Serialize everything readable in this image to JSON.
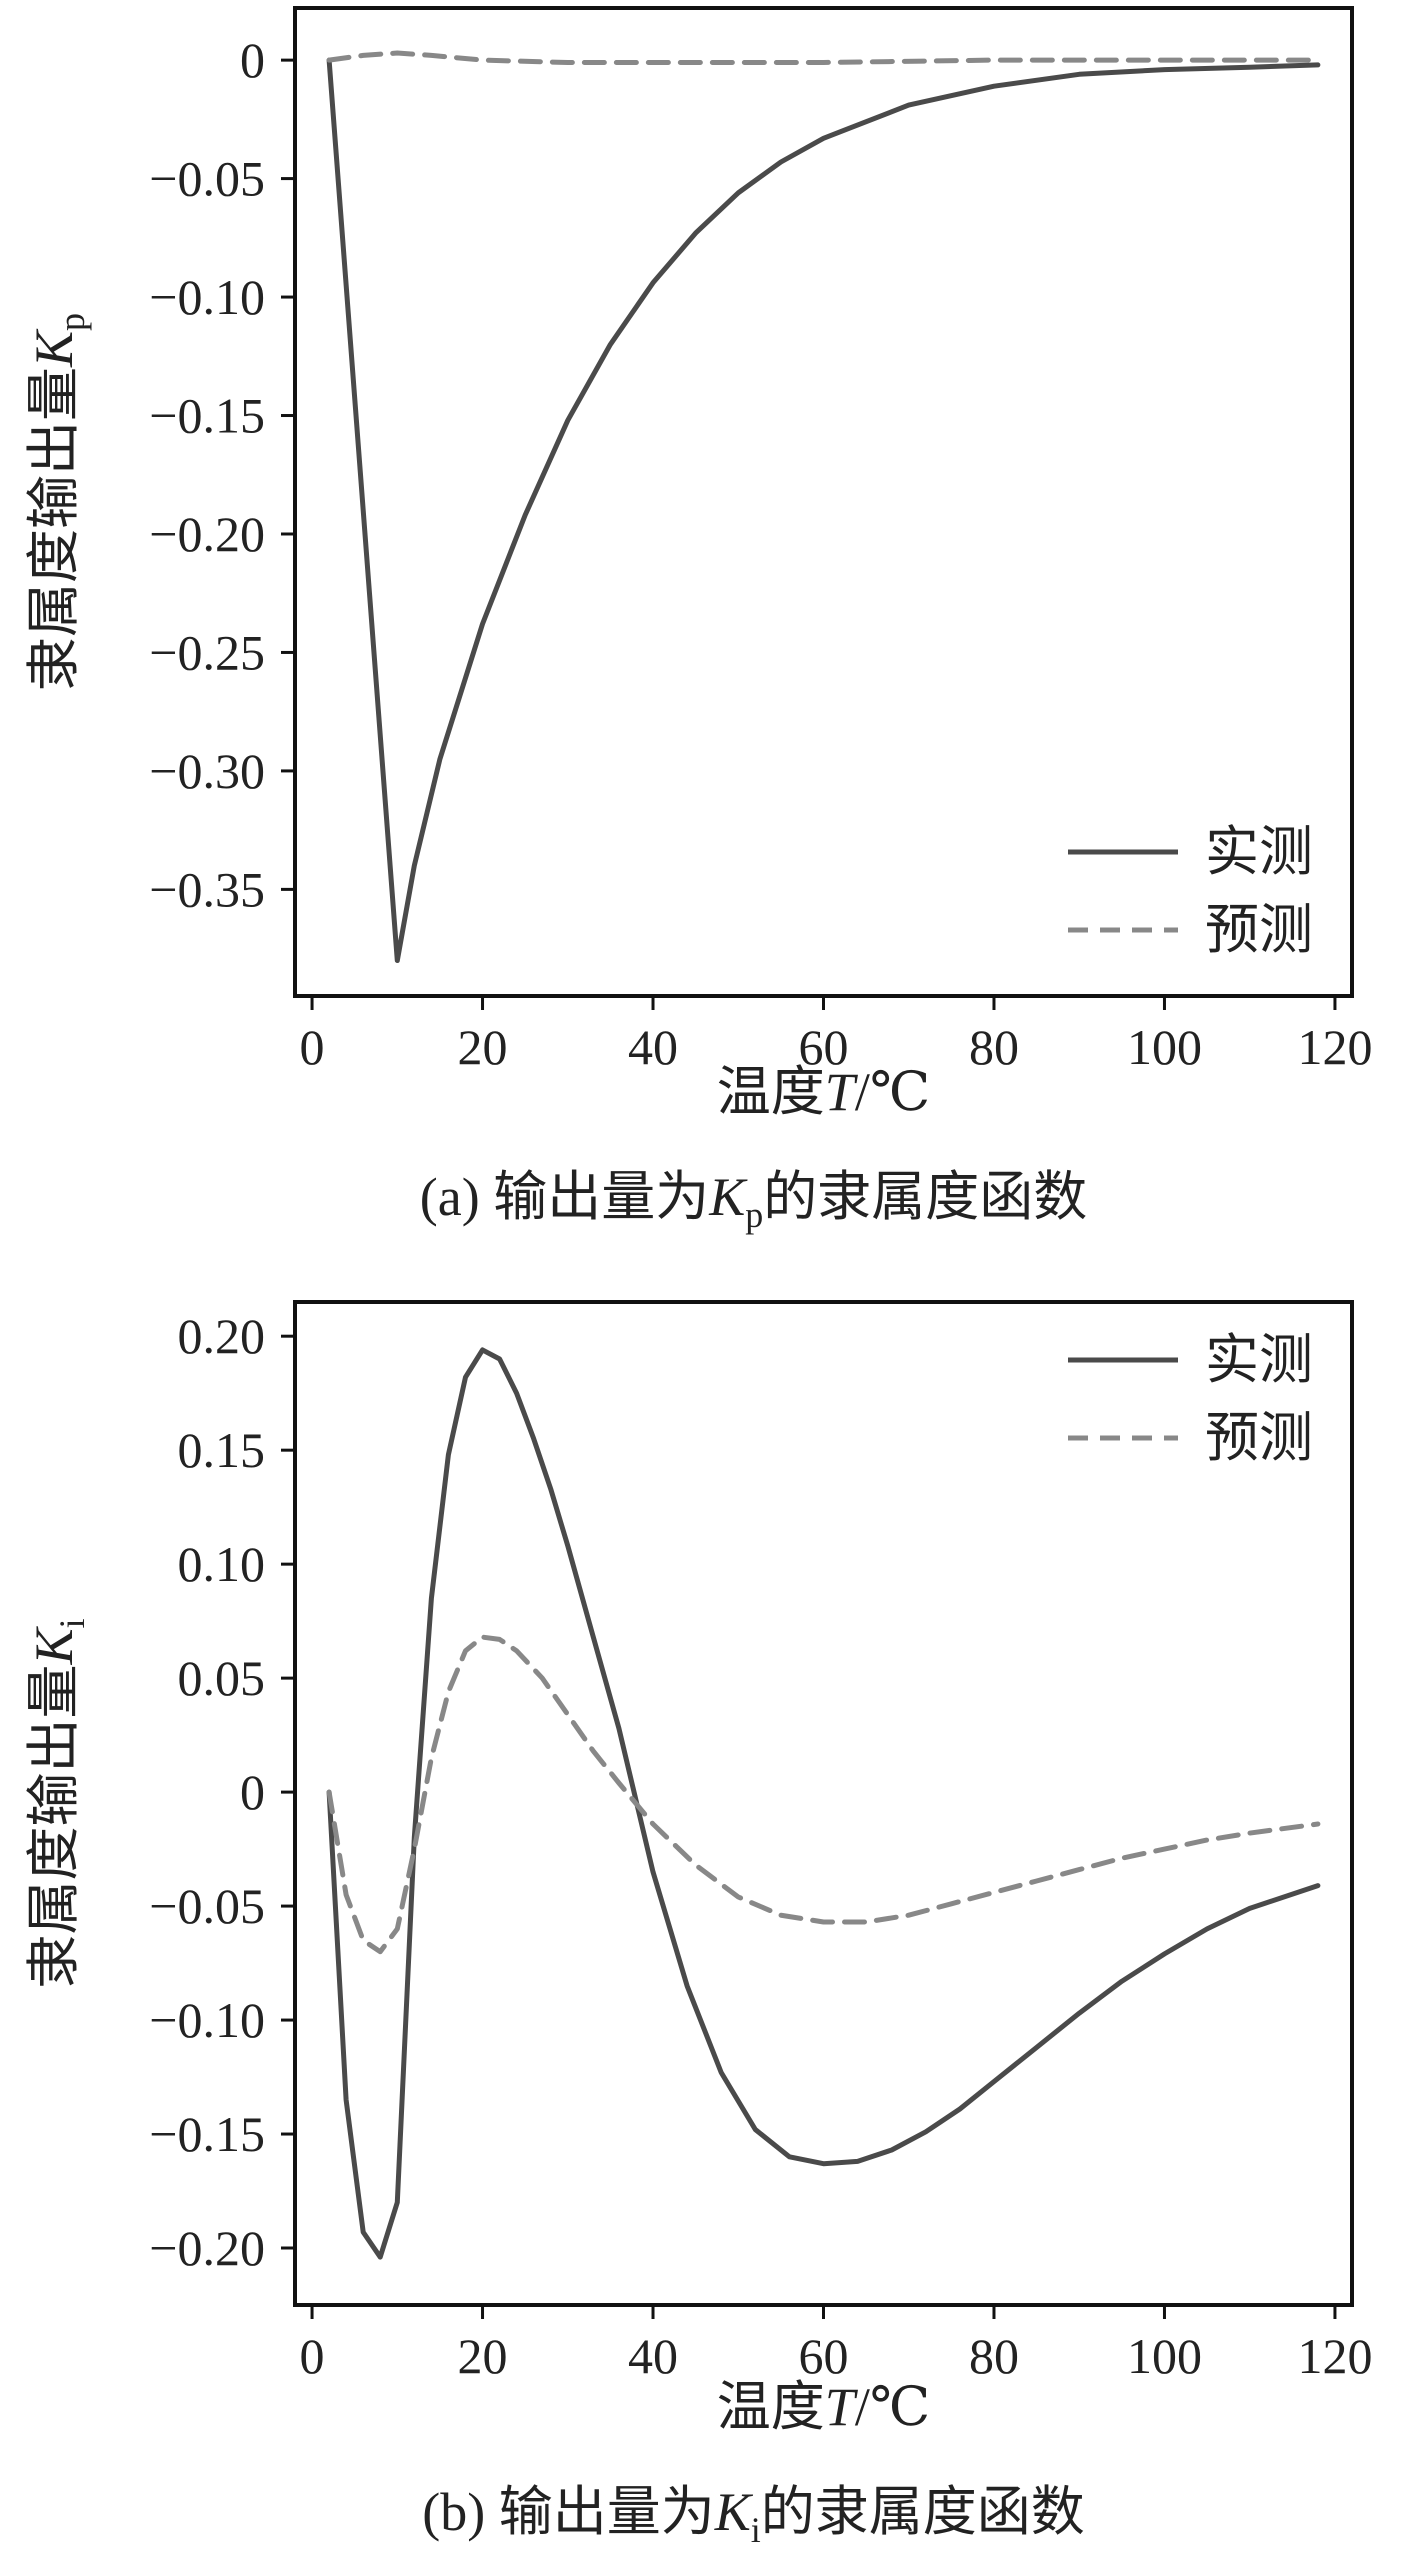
{
  "chart_data": [
    {
      "type": "line",
      "caption": "(a) 输出量为Kp的隶属度函数",
      "caption_parts": {
        "prefix": "(a) 输出量为",
        "symbol": "K",
        "subscript": "p",
        "suffix": "的隶属度函数"
      },
      "xlabel": "温度T/℃",
      "xlabel_parts": {
        "prefix": "温度",
        "symbol": "T",
        "suffix": "/℃"
      },
      "ylabel": "隶属度输出量Kp",
      "ylabel_parts": {
        "prefix": "隶属度输出量",
        "symbol": "K",
        "subscript": "p"
      },
      "xlim": [
        -2,
        122
      ],
      "ylim": [
        -0.395,
        0.022
      ],
      "xticks": [
        0,
        20,
        40,
        60,
        80,
        100,
        120
      ],
      "xtick_labels": [
        "0",
        "20",
        "40",
        "60",
        "80",
        "100",
        "120"
      ],
      "yticks": [
        0,
        -0.05,
        -0.1,
        -0.15,
        -0.2,
        -0.25,
        -0.3,
        -0.35
      ],
      "ytick_labels": [
        "0",
        "−0.05",
        "−0.10",
        "−0.15",
        "−0.20",
        "−0.25",
        "−0.30",
        "−0.35"
      ],
      "grid": false,
      "legend_position": "bottom-right",
      "series": [
        {
          "name": "实测",
          "style": "solid",
          "color": "#4a4a4a",
          "x": [
            2,
            10,
            12,
            15,
            20,
            25,
            30,
            35,
            40,
            45,
            50,
            55,
            60,
            70,
            80,
            90,
            100,
            110,
            118
          ],
          "y": [
            0,
            -0.38,
            -0.34,
            -0.295,
            -0.238,
            -0.192,
            -0.152,
            -0.12,
            -0.094,
            -0.073,
            -0.056,
            -0.043,
            -0.033,
            -0.019,
            -0.011,
            -0.006,
            -0.004,
            -0.003,
            -0.002
          ]
        },
        {
          "name": "预测",
          "style": "dashed",
          "color": "#888888",
          "x": [
            2,
            6,
            10,
            14,
            20,
            30,
            40,
            60,
            80,
            100,
            118
          ],
          "y": [
            0,
            0.002,
            0.003,
            0.002,
            0.0,
            -0.001,
            -0.001,
            -0.001,
            0,
            0,
            0
          ]
        }
      ]
    },
    {
      "type": "line",
      "caption": "(b) 输出量为Ki的隶属度函数",
      "caption_parts": {
        "prefix": "(b) 输出量为",
        "symbol": "K",
        "subscript": "i",
        "suffix": "的隶属度函数"
      },
      "xlabel": "温度T/℃",
      "xlabel_parts": {
        "prefix": "温度",
        "symbol": "T",
        "suffix": "/℃"
      },
      "ylabel": "隶属度输出量Ki",
      "ylabel_parts": {
        "prefix": "隶属度输出量",
        "symbol": "K",
        "subscript": "i"
      },
      "xlim": [
        -2,
        122
      ],
      "ylim": [
        -0.225,
        0.215
      ],
      "xticks": [
        0,
        20,
        40,
        60,
        80,
        100,
        120
      ],
      "xtick_labels": [
        "0",
        "20",
        "40",
        "60",
        "80",
        "100",
        "120"
      ],
      "yticks": [
        0.2,
        0.15,
        0.1,
        0.05,
        0,
        -0.05,
        -0.1,
        -0.15,
        -0.2
      ],
      "ytick_labels": [
        "0.20",
        "0.15",
        "0.10",
        "0.05",
        "0",
        "−0.05",
        "−0.10",
        "−0.15",
        "−0.20"
      ],
      "grid": false,
      "legend_position": "top-right",
      "series": [
        {
          "name": "实测",
          "style": "solid",
          "color": "#4a4a4a",
          "x": [
            2,
            4,
            6,
            8,
            10,
            12,
            14,
            16,
            18,
            20,
            22,
            24,
            26,
            28,
            30,
            33,
            36,
            40,
            44,
            48,
            52,
            56,
            60,
            64,
            68,
            72,
            76,
            80,
            85,
            90,
            95,
            100,
            105,
            110,
            118
          ],
          "y": [
            0,
            -0.135,
            -0.193,
            -0.204,
            -0.18,
            -0.02,
            0.085,
            0.148,
            0.182,
            0.194,
            0.19,
            0.175,
            0.155,
            0.133,
            0.108,
            0.068,
            0.028,
            -0.035,
            -0.085,
            -0.123,
            -0.148,
            -0.16,
            -0.163,
            -0.162,
            -0.157,
            -0.149,
            -0.139,
            -0.127,
            -0.112,
            -0.097,
            -0.083,
            -0.071,
            -0.06,
            -0.051,
            -0.041
          ]
        },
        {
          "name": "预测",
          "style": "dashed",
          "color": "#888888",
          "x": [
            2,
            4,
            6,
            8,
            10,
            12,
            14,
            16,
            18,
            20,
            22,
            24,
            27,
            30,
            33,
            36,
            40,
            45,
            50,
            55,
            60,
            65,
            70,
            75,
            80,
            85,
            90,
            95,
            100,
            105,
            110,
            118
          ],
          "y": [
            0,
            -0.045,
            -0.065,
            -0.07,
            -0.06,
            -0.025,
            0.015,
            0.044,
            0.062,
            0.068,
            0.067,
            0.062,
            0.05,
            0.034,
            0.018,
            0.004,
            -0.014,
            -0.032,
            -0.046,
            -0.054,
            -0.057,
            -0.057,
            -0.054,
            -0.049,
            -0.044,
            -0.039,
            -0.034,
            -0.029,
            -0.025,
            -0.021,
            -0.018,
            -0.014
          ]
        }
      ]
    }
  ]
}
